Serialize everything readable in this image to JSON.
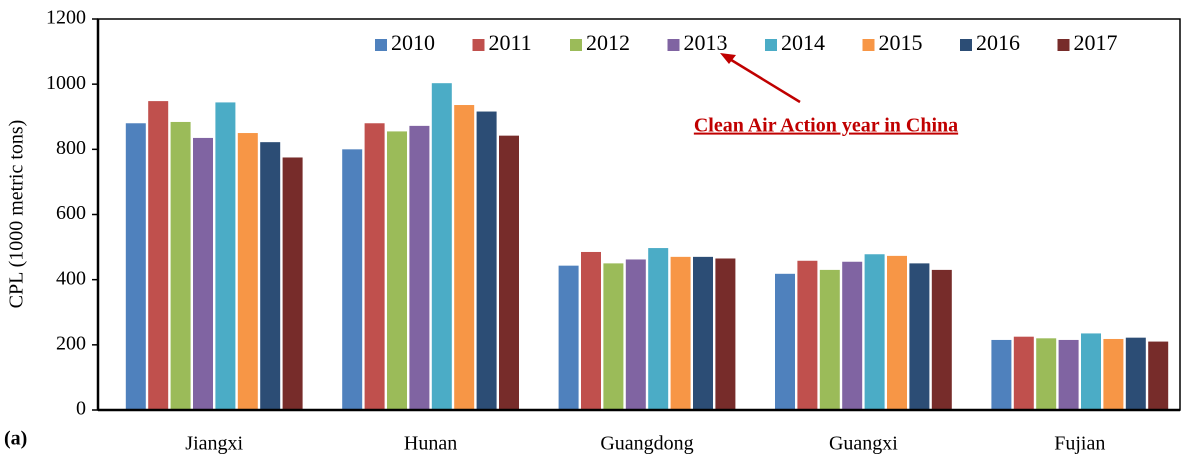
{
  "chart_data": {
    "type": "bar",
    "categories": [
      "Jiangxi",
      "Hunan",
      "Guangdong",
      "Guangxi",
      "Fujian"
    ],
    "series": [
      {
        "name": "2010",
        "color": "#4f81bd",
        "values": [
          880,
          800,
          443,
          418,
          215
        ]
      },
      {
        "name": "2011",
        "color": "#c0504d",
        "values": [
          948,
          880,
          485,
          458,
          225
        ]
      },
      {
        "name": "2012",
        "color": "#9bbb59",
        "values": [
          884,
          855,
          450,
          430,
          220
        ]
      },
      {
        "name": "2013",
        "color": "#8064a2",
        "values": [
          835,
          872,
          462,
          455,
          215
        ]
      },
      {
        "name": "2014",
        "color": "#4bacc6",
        "values": [
          944,
          1003,
          497,
          478,
          235
        ]
      },
      {
        "name": "2015",
        "color": "#f79646",
        "values": [
          850,
          936,
          470,
          473,
          218
        ]
      },
      {
        "name": "2016",
        "color": "#2c4d75",
        "values": [
          822,
          916,
          470,
          450,
          222
        ]
      },
      {
        "name": "2017",
        "color": "#772c2a",
        "values": [
          775,
          842,
          465,
          430,
          210
        ]
      }
    ],
    "y_label": "CPL (1000 metric tons)",
    "ylim": [
      0,
      1200
    ],
    "yticks": [
      0,
      200,
      400,
      600,
      800,
      1000,
      1200
    ],
    "legend": "top",
    "annotation": "Clean Air Action year in China",
    "panel_label": "(a)"
  }
}
